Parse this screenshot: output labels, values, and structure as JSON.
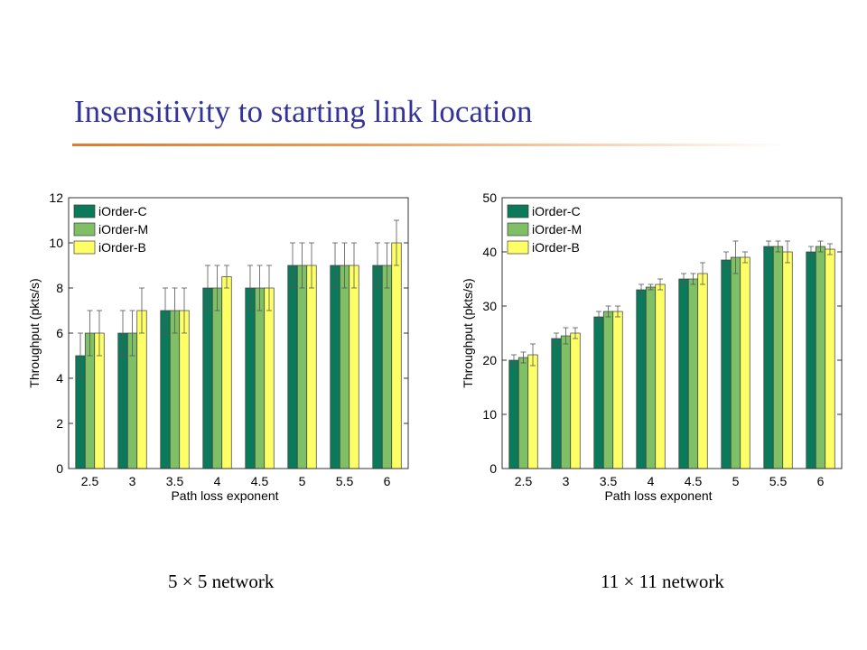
{
  "slide": {
    "title": "Insensitivity to starting link location",
    "captions": [
      "5 × 5 network",
      "11 × 11 network"
    ]
  },
  "colors": {
    "title": "#333399",
    "rule": "#e07a2e",
    "iorder_c": "#0b7a5a",
    "iorder_m": "#7fbf66",
    "iorder_b": "#ffff66"
  },
  "chart_data": [
    {
      "type": "bar",
      "title": "",
      "xlabel": "Path loss exponent",
      "ylabel": "Throughput (pkts/s)",
      "categories": [
        "2.5",
        "3",
        "3.5",
        "4",
        "4.5",
        "5",
        "5.5",
        "6"
      ],
      "ylim": [
        0,
        12
      ],
      "yticks": [
        0,
        2,
        4,
        6,
        8,
        10,
        12
      ],
      "grid": false,
      "legend": "top-left",
      "error_bars": true,
      "series": [
        {
          "name": "iOrder-C",
          "values": [
            5,
            6,
            7,
            8,
            8,
            9,
            9,
            9
          ],
          "err": [
            1,
            1,
            1,
            1,
            1,
            1,
            1,
            1
          ]
        },
        {
          "name": "iOrder-M",
          "values": [
            6,
            6,
            7,
            8,
            8,
            9,
            9,
            9
          ],
          "err": [
            1,
            1,
            1,
            1,
            1,
            1,
            1,
            1
          ]
        },
        {
          "name": "iOrder-B",
          "values": [
            6,
            7,
            7,
            8.5,
            8,
            9,
            9,
            10
          ],
          "err": [
            1,
            1,
            1,
            0.5,
            1,
            1,
            1,
            1
          ]
        }
      ]
    },
    {
      "type": "bar",
      "title": "",
      "xlabel": "Path loss exponent",
      "ylabel": "Throughput (pkts/s)",
      "categories": [
        "2.5",
        "3",
        "3.5",
        "4",
        "4.5",
        "5",
        "5.5",
        "6"
      ],
      "ylim": [
        0,
        50
      ],
      "yticks": [
        0,
        10,
        20,
        30,
        40,
        50
      ],
      "grid": false,
      "legend": "top-left",
      "error_bars": true,
      "series": [
        {
          "name": "iOrder-C",
          "values": [
            20,
            24,
            28,
            33,
            35,
            38.5,
            41,
            40
          ],
          "err": [
            1,
            1,
            1,
            1,
            1,
            1.5,
            1,
            1
          ]
        },
        {
          "name": "iOrder-M",
          "values": [
            20.5,
            24.5,
            29,
            33.5,
            35,
            39,
            41,
            41
          ],
          "err": [
            1,
            1.5,
            1,
            0.5,
            1,
            3,
            1,
            1
          ]
        },
        {
          "name": "iOrder-B",
          "values": [
            21,
            25,
            29,
            34,
            36,
            39,
            40,
            40.5
          ],
          "err": [
            2,
            1,
            1,
            1,
            2,
            1,
            2,
            1
          ]
        }
      ]
    }
  ]
}
